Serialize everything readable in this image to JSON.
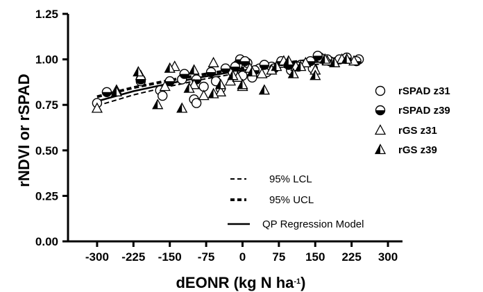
{
  "chart_data": {
    "type": "scatter",
    "title": "",
    "xlabel": "dEONR (kg N ha",
    "xlabel_superscript": "-1",
    "xlabel_suffix": ")",
    "ylabel": "rNDVI or rSPAD",
    "xlim": [
      -360,
      330
    ],
    "ylim": [
      0,
      1.25
    ],
    "x_ticks": [
      "-300",
      "-225",
      "-150",
      "-75",
      "0",
      "75",
      "150",
      "225",
      "300"
    ],
    "y_ticks": [
      "0.00",
      "0.25",
      "0.50",
      "0.75",
      "1.00",
      "1.25"
    ],
    "grid": false,
    "series": [
      {
        "name": "rSPAD z31",
        "marker": "open-circle",
        "points": [
          [
            -300,
            0.76
          ],
          [
            -210,
            0.88
          ],
          [
            -170,
            0.83
          ],
          [
            -165,
            0.8
          ],
          [
            -125,
            0.89
          ],
          [
            -100,
            0.78
          ],
          [
            -95,
            0.76
          ],
          [
            -80,
            0.85
          ],
          [
            -55,
            0.88
          ],
          [
            -45,
            0.84
          ],
          [
            -20,
            0.93
          ],
          [
            -10,
            0.97
          ],
          [
            0,
            0.91
          ],
          [
            10,
            0.98
          ],
          [
            20,
            0.9
          ],
          [
            35,
            0.95
          ],
          [
            50,
            0.93
          ],
          [
            60,
            0.96
          ],
          [
            80,
            0.98
          ],
          [
            100,
            0.94
          ],
          [
            120,
            0.97
          ],
          [
            145,
            0.95
          ],
          [
            160,
            1.01
          ],
          [
            180,
            0.99
          ],
          [
            200,
            1.0
          ],
          [
            240,
            1.0
          ]
        ]
      },
      {
        "name": "rSPAD z39",
        "marker": "half-filled-circle",
        "points": [
          [
            -280,
            0.82
          ],
          [
            -210,
            0.89
          ],
          [
            -150,
            0.88
          ],
          [
            -120,
            0.92
          ],
          [
            -95,
            0.89
          ],
          [
            -65,
            0.93
          ],
          [
            -35,
            0.95
          ],
          [
            -15,
            0.96
          ],
          [
            -5,
            1.0
          ],
          [
            5,
            0.99
          ],
          [
            25,
            0.94
          ],
          [
            45,
            0.97
          ],
          [
            65,
            0.95
          ],
          [
            80,
            0.99
          ],
          [
            95,
            0.97
          ],
          [
            115,
            0.96
          ],
          [
            140,
            0.99
          ],
          [
            155,
            1.02
          ],
          [
            175,
            1.0
          ],
          [
            215,
            1.01
          ],
          [
            235,
            0.99
          ]
        ]
      },
      {
        "name": "rGS z31",
        "marker": "open-triangle",
        "points": [
          [
            -300,
            0.73
          ],
          [
            -260,
            0.83
          ],
          [
            -210,
            0.91
          ],
          [
            -160,
            0.85
          ],
          [
            -140,
            0.96
          ],
          [
            -100,
            0.86
          ],
          [
            -80,
            0.8
          ],
          [
            -60,
            0.98
          ],
          [
            -45,
            0.82
          ],
          [
            -25,
            0.88
          ],
          [
            -10,
            0.9
          ],
          [
            0,
            0.85
          ],
          [
            15,
            0.95
          ],
          [
            40,
            0.92
          ],
          [
            60,
            0.94
          ],
          [
            85,
            0.99
          ],
          [
            110,
            0.96
          ],
          [
            130,
            0.98
          ],
          [
            150,
            0.94
          ],
          [
            175,
            0.99
          ],
          [
            205,
            1.0
          ],
          [
            230,
            0.99
          ]
        ]
      },
      {
        "name": "rGS z39",
        "marker": "half-filled-triangle",
        "points": [
          [
            -260,
            0.82
          ],
          [
            -215,
            0.93
          ],
          [
            -175,
            0.75
          ],
          [
            -150,
            0.95
          ],
          [
            -125,
            0.73
          ],
          [
            -110,
            0.84
          ],
          [
            -100,
            0.94
          ],
          [
            -60,
            0.81
          ],
          [
            -45,
            0.86
          ],
          [
            -20,
            0.91
          ],
          [
            0,
            0.86
          ],
          [
            20,
            0.93
          ],
          [
            45,
            0.83
          ],
          [
            70,
            0.96
          ],
          [
            95,
            0.99
          ],
          [
            105,
            0.92
          ],
          [
            120,
            0.96
          ],
          [
            150,
            0.91
          ],
          [
            170,
            1.0
          ],
          [
            190,
            0.98
          ],
          [
            215,
            1.0
          ]
        ]
      }
    ],
    "lines": [
      {
        "name": "95% LCL",
        "style": "dashed-thin",
        "points": [
          [
            -300,
            0.745
          ],
          [
            -225,
            0.805
          ],
          [
            -150,
            0.852
          ],
          [
            -75,
            0.894
          ],
          [
            0,
            0.928
          ],
          [
            75,
            0.954
          ],
          [
            150,
            0.972
          ],
          [
            240,
            0.982
          ]
        ]
      },
      {
        "name": "95% UCL",
        "style": "dashed-thick",
        "points": [
          [
            -300,
            0.795
          ],
          [
            -225,
            0.845
          ],
          [
            -150,
            0.885
          ],
          [
            -75,
            0.92
          ],
          [
            0,
            0.952
          ],
          [
            75,
            0.978
          ],
          [
            150,
            0.998
          ],
          [
            240,
            1.01
          ]
        ]
      },
      {
        "name": "QP Regression Model",
        "style": "solid",
        "points": [
          [
            -300,
            0.77
          ],
          [
            -225,
            0.825
          ],
          [
            -150,
            0.868
          ],
          [
            -75,
            0.907
          ],
          [
            0,
            0.94
          ],
          [
            75,
            0.966
          ],
          [
            150,
            0.985
          ],
          [
            240,
            0.996
          ]
        ]
      }
    ],
    "legend": {
      "placement": "right",
      "markers": [
        "rSPAD z31",
        "rSPAD z39",
        "rGS z31",
        "rGS z39"
      ],
      "lines": [
        "95% LCL",
        "95% UCL",
        "QP Regression Model"
      ]
    }
  }
}
